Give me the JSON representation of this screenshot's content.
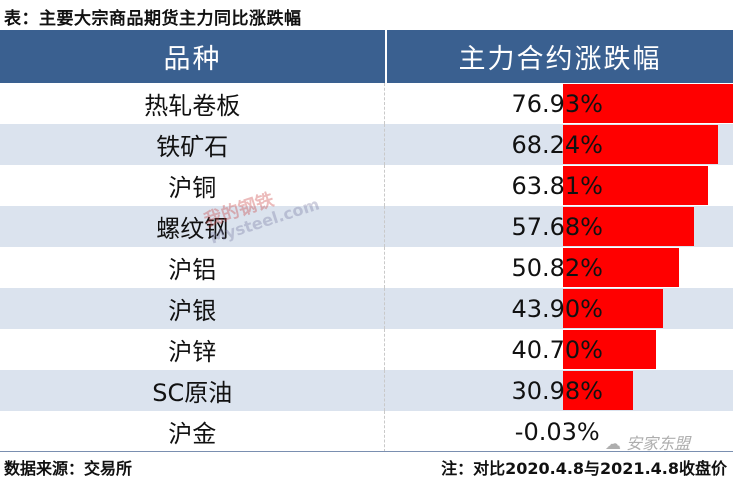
{
  "title": "表：主要大宗商品期货主力同比涨跌幅",
  "table": {
    "headers": [
      "品种",
      "主力合约涨跌幅"
    ],
    "rows": [
      {
        "name": "热轧卷板",
        "value": "76.93%",
        "num": 76.93
      },
      {
        "name": "铁矿石",
        "value": "68.24%",
        "num": 68.24
      },
      {
        "name": "沪铜",
        "value": "63.81%",
        "num": 63.81
      },
      {
        "name": "螺纹钢",
        "value": "57.68%",
        "num": 57.68
      },
      {
        "name": "沪铝",
        "value": "50.82%",
        "num": 50.82
      },
      {
        "name": "沪银",
        "value": "43.90%",
        "num": 43.9
      },
      {
        "name": "沪锌",
        "value": "40.70%",
        "num": 40.7
      },
      {
        "name": "SC原油",
        "value": "30.98%",
        "num": 30.98
      },
      {
        "name": "沪金",
        "value": "-0.03%",
        "num": -0.03
      }
    ]
  },
  "footer": {
    "source": "数据来源：交易所",
    "note": "注：对比2020.4.8与2021.4.8收盘价"
  },
  "watermarks": {
    "mysteel_cn": "我的钢铁",
    "mysteel_en": "Mysteel.com",
    "account": "安家东盟"
  },
  "colors": {
    "header_bg": "#3a6090",
    "alt_row_bg": "#dbe3ee",
    "bar": "#ff0000"
  },
  "chart_data": {
    "type": "table",
    "title": "表：主要大宗商品期货主力同比涨跌幅",
    "columns": [
      "品种",
      "主力合约涨跌幅"
    ],
    "categories": [
      "热轧卷板",
      "铁矿石",
      "沪铜",
      "螺纹钢",
      "沪铝",
      "沪银",
      "沪锌",
      "SC原油",
      "沪金"
    ],
    "values": [
      76.93,
      68.24,
      63.81,
      57.68,
      50.82,
      43.9,
      40.7,
      30.98,
      -0.03
    ],
    "unit": "%",
    "data_bars": true,
    "bar_color": "#ff0000",
    "source": "数据来源：交易所",
    "note": "注：对比2020.4.8与2021.4.8收盘价"
  }
}
